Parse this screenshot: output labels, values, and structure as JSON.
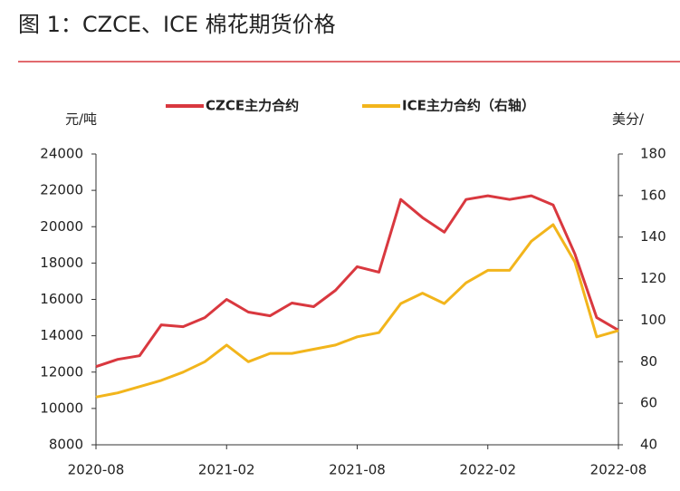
{
  "chart_data": {
    "type": "line",
    "title": "图 1：CZCE、ICE 棉花期货价格",
    "y_label": "元/吨",
    "y2_label": "美分/",
    "x": [
      "2020-08",
      "2020-09",
      "2020-10",
      "2020-11",
      "2020-12",
      "2021-01",
      "2021-02",
      "2021-03",
      "2021-04",
      "2021-05",
      "2021-06",
      "2021-07",
      "2021-08",
      "2021-09",
      "2021-10",
      "2021-11",
      "2021-12",
      "2022-01",
      "2022-02",
      "2022-03",
      "2022-04",
      "2022-05",
      "2022-06",
      "2022-07",
      "2022-08"
    ],
    "xticks": [
      "2020-08",
      "2021-02",
      "2021-08",
      "2022-02",
      "2022-08"
    ],
    "ylim": [
      8000,
      24000
    ],
    "yticks": [
      8000,
      10000,
      12000,
      14000,
      16000,
      18000,
      20000,
      22000,
      24000
    ],
    "y2lim": [
      40,
      180
    ],
    "y2ticks": [
      40,
      60,
      80,
      100,
      120,
      140,
      160,
      180
    ],
    "series": [
      {
        "name": "CZCE主力合约",
        "color": "#d9383f",
        "values": [
          12300,
          12700,
          12900,
          14600,
          14500,
          15000,
          16000,
          15300,
          15100,
          15800,
          15600,
          16500,
          17800,
          17500,
          21500,
          20500,
          19700,
          21500,
          21700,
          21500,
          21700,
          21200,
          18500,
          15000,
          14300
        ]
      },
      {
        "name": "ICE主力合约（右轴）",
        "color": "#f2b51c",
        "axis": "y2",
        "values": [
          63,
          65,
          68,
          71,
          75,
          80,
          88,
          80,
          84,
          84,
          86,
          88,
          92,
          94,
          108,
          113,
          108,
          118,
          124,
          124,
          138,
          146,
          128,
          92,
          95
        ]
      }
    ]
  }
}
